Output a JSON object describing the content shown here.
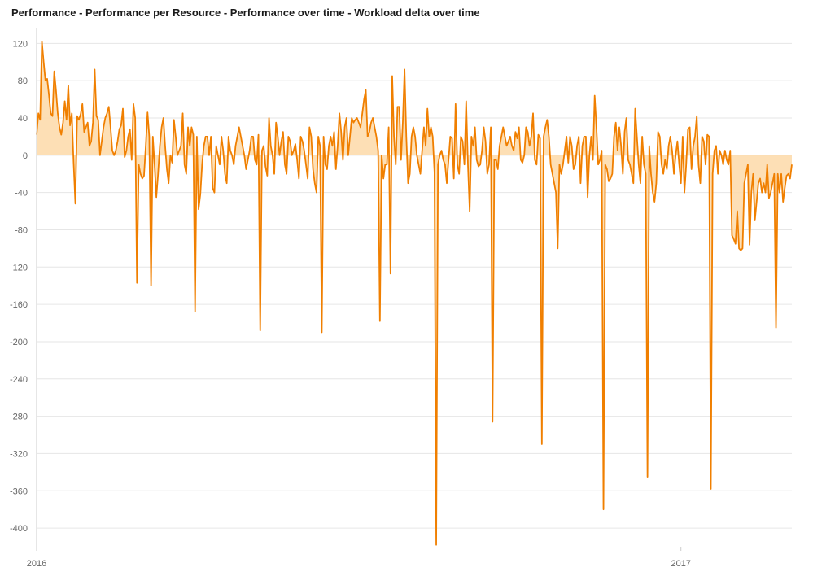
{
  "title": "Performance - Performance per Resource - Performance over time - Workload delta over time",
  "colors": {
    "line": "#f07f00",
    "fill": "#fdd9a8",
    "grid": "#e6e6e6",
    "axis": "#cccccc",
    "text": "#666666"
  },
  "chart_data": {
    "type": "area",
    "title": "Performance - Performance per Resource - Performance over time - Workload delta over time",
    "xlabel": "",
    "ylabel": "",
    "ylim": [
      -420,
      130
    ],
    "yticks": [
      120,
      80,
      40,
      0,
      -40,
      -80,
      -120,
      -160,
      -200,
      -240,
      -280,
      -320,
      -360,
      -400
    ],
    "xticks": [
      {
        "label": "2016",
        "x": "2016-01-01"
      },
      {
        "label": "2017",
        "x": "2017-01-01"
      }
    ],
    "xlim": [
      "2016-01-01",
      "2017-03-05"
    ],
    "grid": true,
    "legend": "none",
    "series": [
      {
        "start": "2016-01-01",
        "step_days": 1,
        "values": [
          22,
          45,
          38,
          122,
          100,
          80,
          82,
          65,
          45,
          42,
          90,
          70,
          45,
          30,
          22,
          35,
          58,
          38,
          75,
          32,
          45,
          -8,
          -52,
          42,
          38,
          44,
          55,
          25,
          30,
          35,
          10,
          15,
          35,
          92,
          42,
          38,
          0,
          15,
          30,
          40,
          45,
          52,
          30,
          5,
          0,
          5,
          15,
          28,
          32,
          50,
          -2,
          5,
          20,
          28,
          -5,
          55,
          40,
          -137,
          -10,
          -20,
          -25,
          -22,
          10,
          46,
          20,
          -140,
          20,
          -10,
          -45,
          -20,
          10,
          30,
          40,
          10,
          -15,
          -30,
          0,
          -8,
          38,
          20,
          0,
          5,
          10,
          45,
          -10,
          -20,
          30,
          10,
          30,
          22,
          -168,
          20,
          -58,
          -42,
          -10,
          10,
          20,
          20,
          0,
          20,
          -35,
          -40,
          10,
          0,
          -10,
          20,
          5,
          -20,
          -30,
          20,
          5,
          0,
          -10,
          10,
          20,
          30,
          20,
          10,
          0,
          -15,
          -5,
          5,
          20,
          20,
          -5,
          -10,
          22,
          -188,
          5,
          10,
          -12,
          -22,
          40,
          10,
          0,
          -20,
          35,
          20,
          0,
          15,
          25,
          -10,
          -20,
          20,
          15,
          0,
          5,
          12,
          -5,
          -25,
          20,
          15,
          5,
          -10,
          -25,
          30,
          20,
          -15,
          -30,
          -40,
          20,
          10,
          -190,
          20,
          -10,
          -15,
          10,
          20,
          10,
          25,
          -15,
          10,
          45,
          25,
          -5,
          30,
          40,
          0,
          20,
          40,
          35,
          38,
          40,
          35,
          30,
          45,
          60,
          70,
          20,
          25,
          35,
          40,
          30,
          20,
          5,
          -178,
          0,
          -25,
          -10,
          -10,
          30,
          -127,
          85,
          20,
          -10,
          52,
          52,
          -5,
          35,
          92,
          20,
          -30,
          -20,
          20,
          30,
          20,
          0,
          -10,
          -20,
          5,
          30,
          10,
          50,
          20,
          30,
          20,
          -18,
          -418,
          -10,
          0,
          5,
          -5,
          -10,
          -30,
          -5,
          20,
          18,
          -25,
          55,
          -10,
          -20,
          20,
          15,
          -10,
          58,
          -10,
          -60,
          20,
          10,
          30,
          -5,
          -12,
          -10,
          5,
          30,
          15,
          -20,
          -10,
          30,
          -286,
          -5,
          -5,
          -15,
          10,
          20,
          30,
          20,
          10,
          15,
          20,
          10,
          5,
          25,
          18,
          30,
          -5,
          -8,
          0,
          30,
          25,
          10,
          20,
          45,
          -5,
          -10,
          22,
          18,
          -310,
          20,
          30,
          38,
          20,
          -10,
          -20,
          -30,
          -40,
          -100,
          -10,
          -20,
          -10,
          5,
          20,
          -8,
          20,
          10,
          -15,
          -10,
          10,
          20,
          -30,
          10,
          20,
          20,
          -45,
          0,
          20,
          -5,
          64,
          30,
          -10,
          -5,
          5,
          -380,
          -10,
          -15,
          -28,
          -25,
          -20,
          20,
          35,
          5,
          30,
          10,
          -20,
          25,
          40,
          -5,
          -10,
          -20,
          -30,
          50,
          20,
          -10,
          -30,
          20,
          -10,
          -20,
          -345,
          10,
          -20,
          -40,
          -50,
          -30,
          25,
          20,
          -10,
          -20,
          -5,
          -15,
          10,
          20,
          5,
          -20,
          0,
          15,
          -10,
          -30,
          20,
          -40,
          -10,
          28,
          30,
          -15,
          10,
          20,
          42,
          -10,
          -30,
          20,
          15,
          -10,
          22,
          20,
          -358,
          -20,
          5,
          10,
          -20,
          5,
          0,
          -10,
          5,
          -5,
          -10,
          5,
          -86,
          -90,
          -95,
          -60,
          -100,
          -102,
          -100,
          -30,
          -20,
          -10,
          -96,
          -40,
          -20,
          -70,
          -50,
          -30,
          -25,
          -40,
          -30,
          -40,
          -10,
          -46,
          -40,
          -30,
          -20,
          -185,
          -20,
          -40,
          -20,
          -50,
          -35,
          -22,
          -20,
          -25,
          -10
        ]
      }
    ]
  }
}
